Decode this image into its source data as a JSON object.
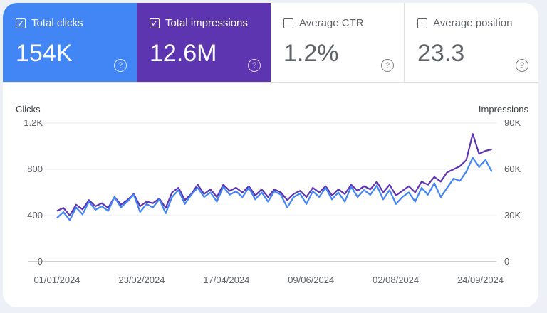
{
  "metrics": [
    {
      "label": "Total clicks",
      "value": "154K",
      "checked": true,
      "color": "#4285f4"
    },
    {
      "label": "Total impressions",
      "value": "12.6M",
      "checked": true,
      "color": "#5e35b1"
    },
    {
      "label": "Average CTR",
      "value": "1.2%",
      "checked": false
    },
    {
      "label": "Average position",
      "value": "23.3",
      "checked": false
    }
  ],
  "help_glyph": "?",
  "check_glyph": "✓",
  "chart_data": {
    "type": "line",
    "ylabel_left": "Clicks",
    "ylabel_right": "Impressions",
    "ylim_left": [
      0,
      1200
    ],
    "ylim_right": [
      0,
      90000
    ],
    "yticks_left": [
      "0",
      "400",
      "800",
      "1.2K"
    ],
    "yticks_right": [
      "0",
      "30K",
      "60K",
      "90K"
    ],
    "xticks": [
      "01/01/2024",
      "23/02/2024",
      "17/04/2024",
      "09/06/2024",
      "02/08/2024",
      "24/09/2024"
    ],
    "grid": true,
    "x": [
      "2024-01-01",
      "2024-01-05",
      "2024-01-09",
      "2024-01-13",
      "2024-01-17",
      "2024-01-21",
      "2024-01-25",
      "2024-01-29",
      "2024-02-02",
      "2024-02-06",
      "2024-02-10",
      "2024-02-14",
      "2024-02-18",
      "2024-02-22",
      "2024-02-26",
      "2024-03-01",
      "2024-03-05",
      "2024-03-09",
      "2024-03-13",
      "2024-03-17",
      "2024-03-21",
      "2024-03-25",
      "2024-03-29",
      "2024-04-02",
      "2024-04-06",
      "2024-04-10",
      "2024-04-14",
      "2024-04-18",
      "2024-04-22",
      "2024-04-26",
      "2024-04-30",
      "2024-05-04",
      "2024-05-08",
      "2024-05-12",
      "2024-05-16",
      "2024-05-20",
      "2024-05-24",
      "2024-05-28",
      "2024-06-01",
      "2024-06-05",
      "2024-06-09",
      "2024-06-13",
      "2024-06-17",
      "2024-06-21",
      "2024-06-25",
      "2024-06-29",
      "2024-07-03",
      "2024-07-07",
      "2024-07-11",
      "2024-07-15",
      "2024-07-19",
      "2024-07-23",
      "2024-07-27",
      "2024-07-31",
      "2024-08-04",
      "2024-08-08",
      "2024-08-12",
      "2024-08-16",
      "2024-08-20",
      "2024-08-24",
      "2024-08-28",
      "2024-09-01",
      "2024-09-05",
      "2024-09-09",
      "2024-09-13",
      "2024-09-17",
      "2024-09-21",
      "2024-09-25",
      "2024-09-29"
    ],
    "series": [
      {
        "name": "Clicks",
        "axis": "left",
        "color": "#4285f4",
        "values": [
          380,
          430,
          360,
          470,
          410,
          520,
          450,
          480,
          440,
          560,
          470,
          520,
          580,
          430,
          500,
          470,
          540,
          420,
          560,
          620,
          500,
          580,
          640,
          560,
          600,
          520,
          650,
          580,
          610,
          560,
          640,
          540,
          600,
          520,
          610,
          580,
          470,
          560,
          590,
          500,
          610,
          560,
          640,
          540,
          600,
          520,
          650,
          560,
          620,
          580,
          660,
          540,
          620,
          500,
          560,
          600,
          520,
          640,
          580,
          680,
          560,
          640,
          720,
          700,
          780,
          900,
          820,
          880,
          780
        ]
      },
      {
        "name": "Impressions",
        "axis": "right",
        "color": "#5e35b1",
        "values": [
          33000,
          35000,
          30000,
          37000,
          34000,
          40000,
          36000,
          38000,
          35000,
          42000,
          37000,
          40000,
          44000,
          36000,
          39000,
          38000,
          41000,
          35000,
          45000,
          48000,
          40000,
          44000,
          50000,
          44000,
          47000,
          42000,
          50000,
          46000,
          48000,
          45000,
          49000,
          43000,
          47000,
          42000,
          47000,
          45000,
          40000,
          44000,
          46000,
          42000,
          48000,
          45000,
          49000,
          43000,
          47000,
          44000,
          50000,
          46000,
          49000,
          47000,
          52000,
          45000,
          50000,
          43000,
          46000,
          49000,
          45000,
          52000,
          50000,
          55000,
          52000,
          58000,
          60000,
          62000,
          66000,
          83000,
          70000,
          72000,
          73000
        ]
      }
    ]
  }
}
